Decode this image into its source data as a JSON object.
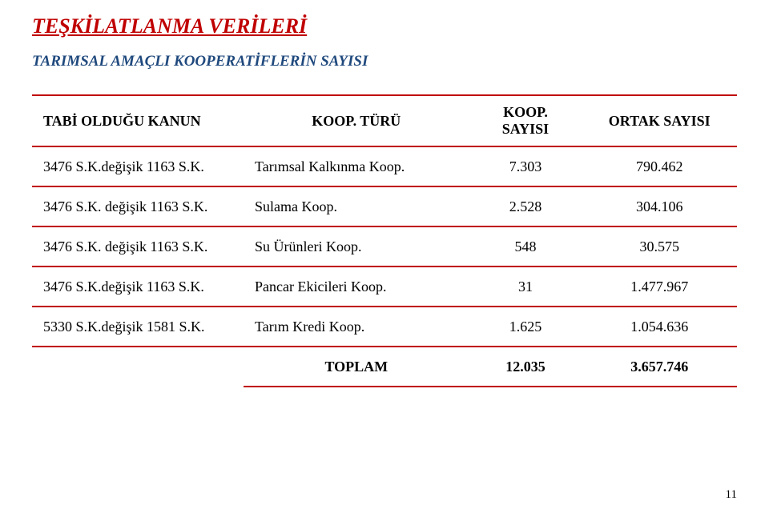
{
  "title": {
    "text": "TEŞKİLATLANMA VERİLERİ",
    "color": "#c00000"
  },
  "subtitle": {
    "text": "TARIMSAL AMAÇLI KOOPERATİFLERİN SAYISI",
    "color": "#1f497d"
  },
  "table": {
    "border_color": "#c00000",
    "columns": [
      {
        "label": "TABİ OLDUĞU KANUN"
      },
      {
        "label": "KOOP. TÜRÜ"
      },
      {
        "label": "KOOP. SAYISI"
      },
      {
        "label": "ORTAK SAYISI"
      }
    ],
    "rows": [
      {
        "kanun": "3476 S.K.değişik  1163 S.K.",
        "turu": "Tarımsal Kalkınma Koop.",
        "sayisi": "7.303",
        "ortak": "790.462"
      },
      {
        "kanun": "3476 S.K. değişik 1163 S.K.",
        "turu": "Sulama Koop.",
        "sayisi": "2.528",
        "ortak": "304.106"
      },
      {
        "kanun": "3476 S.K. değişik 1163 S.K.",
        "turu": "Su Ürünleri Koop.",
        "sayisi": "548",
        "ortak": "30.575"
      },
      {
        "kanun": "3476 S.K.değişik  1163 S.K.",
        "turu": "Pancar Ekicileri Koop.",
        "sayisi": "31",
        "ortak": "1.477.967"
      },
      {
        "kanun": "5330 S.K.değişik  1581 S.K.",
        "turu": "Tarım Kredi Koop.",
        "sayisi": "1.625",
        "ortak": "1.054.636"
      }
    ],
    "total": {
      "label": "TOPLAM",
      "sayisi": "12.035",
      "ortak": "3.657.746"
    }
  },
  "page_number": "11"
}
